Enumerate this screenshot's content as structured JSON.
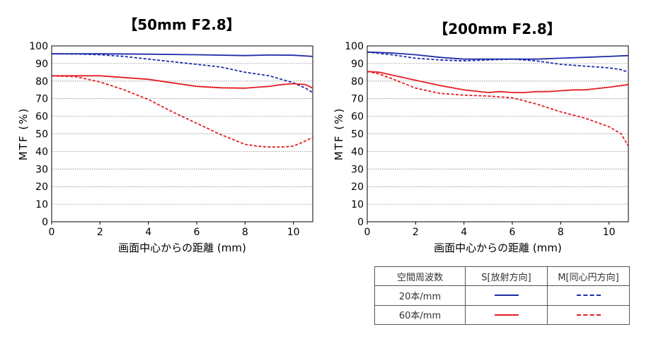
{
  "colors": {
    "blue": "#1d2ca8",
    "red": "#e31e24",
    "grid": "#888888"
  },
  "chart_data": [
    {
      "type": "line",
      "title": "【50mm F2.8】",
      "xlabel": "画面中心からの距離 (mm)",
      "ylabel": "MTF (%)",
      "xlim": [
        0,
        10.8
      ],
      "ylim": [
        0,
        100
      ],
      "xticks": [
        0,
        2,
        4,
        6,
        8,
        10
      ],
      "yticks": [
        0,
        10,
        20,
        30,
        40,
        50,
        60,
        70,
        80,
        90,
        100
      ],
      "series": [
        {
          "name": "20本/mm S[放射方向]",
          "color": "blue",
          "dash": false,
          "x": [
            0,
            2,
            4,
            6,
            8,
            9,
            10,
            10.8
          ],
          "y": [
            95.5,
            95.5,
            95.3,
            95,
            94.5,
            94.8,
            94.7,
            94
          ]
        },
        {
          "name": "20本/mm M[同心円方向]",
          "color": "blue",
          "dash": true,
          "x": [
            0,
            1,
            2,
            3,
            4,
            5,
            6,
            7,
            8,
            9,
            9.5,
            10,
            10.5,
            10.8
          ],
          "y": [
            95.5,
            95.4,
            95,
            94,
            92.5,
            91,
            89.5,
            88,
            85,
            83,
            81,
            79,
            76,
            73.5
          ]
        },
        {
          "name": "60本/mm S[放射方向]",
          "color": "red",
          "dash": false,
          "x": [
            0,
            1,
            2,
            3,
            4,
            5,
            6,
            7,
            8,
            8.5,
            9,
            9.5,
            10,
            10.5,
            10.8
          ],
          "y": [
            83,
            83,
            83,
            82,
            81,
            79,
            77,
            76.2,
            76,
            76.5,
            77,
            78,
            78.5,
            78,
            76
          ]
        },
        {
          "name": "60本/mm M[同心円方向]",
          "color": "red",
          "dash": true,
          "x": [
            0,
            1,
            2,
            3,
            4,
            5,
            6,
            7,
            8,
            8.5,
            9,
            9.5,
            10,
            10.5,
            10.8
          ],
          "y": [
            83,
            82.5,
            79.5,
            75,
            69.5,
            62.5,
            56,
            49.5,
            44,
            43,
            42.5,
            42.5,
            43,
            46,
            48
          ]
        }
      ]
    },
    {
      "type": "line",
      "title": "【200mm F2.8】",
      "xlabel": "画面中心からの距離 (mm)",
      "ylabel": "MTF (%)",
      "xlim": [
        0,
        10.8
      ],
      "ylim": [
        0,
        100
      ],
      "xticks": [
        0,
        2,
        4,
        6,
        8,
        10
      ],
      "yticks": [
        0,
        10,
        20,
        30,
        40,
        50,
        60,
        70,
        80,
        90,
        100
      ],
      "series": [
        {
          "name": "20本/mm S[放射方向]",
          "color": "blue",
          "dash": false,
          "x": [
            0,
            1,
            2,
            3,
            4,
            5,
            6,
            7,
            8,
            9,
            10,
            10.8
          ],
          "y": [
            96.5,
            96,
            95,
            93.5,
            92.5,
            92.5,
            92.5,
            92.5,
            93,
            93.5,
            94,
            94.5
          ]
        },
        {
          "name": "20本/mm M[同心円方向]",
          "color": "blue",
          "dash": true,
          "x": [
            0,
            1,
            2,
            3,
            4,
            5,
            6,
            7,
            8,
            9,
            10,
            10.5,
            10.8
          ],
          "y": [
            96.5,
            95,
            93,
            92,
            91.5,
            92,
            92.5,
            91.5,
            89.5,
            88.5,
            87.5,
            86.5,
            85
          ]
        },
        {
          "name": "60本/mm S[放射方向]",
          "color": "red",
          "dash": false,
          "x": [
            0,
            0.5,
            1,
            2,
            3,
            4,
            5,
            5.5,
            6,
            6.5,
            7,
            7.5,
            8,
            8.5,
            9,
            10,
            10.8
          ],
          "y": [
            85.5,
            85,
            83.5,
            80.5,
            77.5,
            75,
            73.5,
            74,
            73.5,
            73.5,
            74,
            74,
            74.5,
            75,
            75,
            76.5,
            78
          ]
        },
        {
          "name": "60本/mm M[同心円方向]",
          "color": "red",
          "dash": true,
          "x": [
            0,
            0.5,
            1,
            2,
            3,
            4,
            5,
            6,
            7,
            8,
            9,
            10,
            10.5,
            10.8
          ],
          "y": [
            85.5,
            84,
            81.5,
            76,
            73,
            72,
            71.5,
            70.5,
            67,
            62.5,
            59,
            54,
            50,
            43
          ]
        }
      ]
    }
  ],
  "legend": {
    "header": [
      "空間周波数",
      "S[放射方向]",
      "M[同心円方向]"
    ],
    "rows": [
      {
        "label": "20本/mm",
        "color": "blue"
      },
      {
        "label": "60本/mm",
        "color": "red"
      }
    ]
  }
}
